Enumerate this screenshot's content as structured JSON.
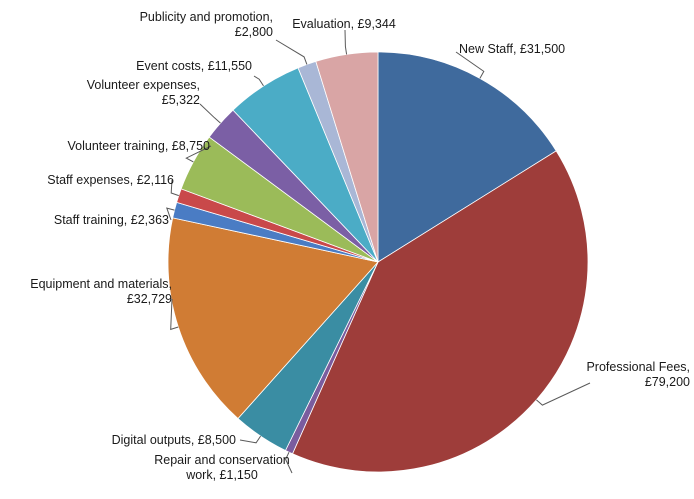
{
  "chart_data": {
    "type": "pie",
    "title": "",
    "slices": [
      {
        "name": "New Staff",
        "value": 31500,
        "label_lines": [
          "New Staff, £31,500"
        ],
        "color": "#3F6A9D"
      },
      {
        "name": "Professional Fees",
        "value": 79200,
        "label_lines": [
          "Professional Fees,",
          "£79,200"
        ],
        "color": "#9E3D3A"
      },
      {
        "name": "Repair and conservation work",
        "value": 1150,
        "label_lines": [
          "Repair and conservation",
          "work, £1,150"
        ],
        "color": "#7A5C9E"
      },
      {
        "name": "Digital outputs",
        "value": 8500,
        "label_lines": [
          "Digital outputs, £8,500"
        ],
        "color": "#3A8DA3"
      },
      {
        "name": "Equipment and materials",
        "value": 32729,
        "label_lines": [
          "Equipment and materials,",
          "£32,729"
        ],
        "color": "#D07C34"
      },
      {
        "name": "Staff training",
        "value": 2363,
        "label_lines": [
          "Staff training, £2,363"
        ],
        "color": "#4A7CC4"
      },
      {
        "name": "Staff expenses",
        "value": 2116,
        "label_lines": [
          "Staff expenses, £2,116"
        ],
        "color": "#C9494A"
      },
      {
        "name": "Volunteer training",
        "value": 8750,
        "label_lines": [
          "Volunteer training, £8,750"
        ],
        "color": "#9BBB59"
      },
      {
        "name": "Volunteer expenses",
        "value": 5322,
        "label_lines": [
          "Volunteer expenses,",
          "£5,322"
        ],
        "color": "#7B5FA5"
      },
      {
        "name": "Event costs",
        "value": 11550,
        "label_lines": [
          "Event costs, £11,550"
        ],
        "color": "#4BACC6"
      },
      {
        "name": "Publicity and promotion",
        "value": 2800,
        "label_lines": [
          "Publicity and promotion,",
          "£2,800"
        ],
        "color": "#A9B7D6"
      },
      {
        "name": "Evaluation",
        "value": 9344,
        "label_lines": [
          "Evaluation, £9,344"
        ],
        "color": "#D9A5A5"
      }
    ],
    "legend": "none",
    "label_style": "outside-with-leader-lines"
  }
}
